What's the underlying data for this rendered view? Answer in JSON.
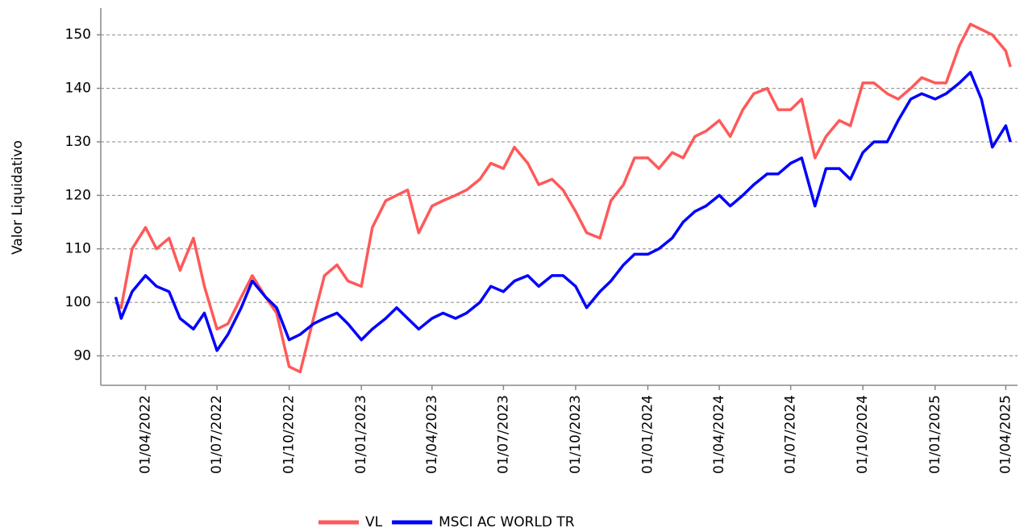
{
  "chart_data": {
    "type": "line",
    "y_label": "Valor Liquidativo",
    "x": [
      "22/02/2022",
      "01/03/2022",
      "15/03/2022",
      "01/04/2022",
      "15/04/2022",
      "01/05/2022",
      "15/05/2022",
      "01/06/2022",
      "15/06/2022",
      "01/07/2022",
      "15/07/2022",
      "01/08/2022",
      "15/08/2022",
      "01/09/2022",
      "15/09/2022",
      "01/10/2022",
      "15/10/2022",
      "01/11/2022",
      "15/11/2022",
      "01/12/2022",
      "15/12/2022",
      "01/01/2023",
      "15/01/2023",
      "01/02/2023",
      "15/02/2023",
      "01/03/2023",
      "15/03/2023",
      "01/04/2023",
      "15/04/2023",
      "01/05/2023",
      "15/05/2023",
      "01/06/2023",
      "15/06/2023",
      "01/07/2023",
      "15/07/2023",
      "01/08/2023",
      "15/08/2023",
      "01/09/2023",
      "15/09/2023",
      "01/10/2023",
      "15/10/2023",
      "01/11/2023",
      "15/11/2023",
      "01/12/2023",
      "15/12/2023",
      "01/01/2024",
      "15/01/2024",
      "01/02/2024",
      "15/02/2024",
      "01/03/2024",
      "15/03/2024",
      "01/04/2024",
      "15/04/2024",
      "01/05/2024",
      "15/05/2024",
      "01/06/2024",
      "15/06/2024",
      "01/07/2024",
      "15/07/2024",
      "01/08/2024",
      "15/08/2024",
      "01/09/2024",
      "15/09/2024",
      "01/10/2024",
      "15/10/2024",
      "01/11/2024",
      "15/11/2024",
      "01/12/2024",
      "15/12/2024",
      "01/01/2025",
      "15/01/2025",
      "01/02/2025",
      "15/02/2025",
      "01/03/2025",
      "15/03/2025",
      "01/04/2025",
      "07/04/2025"
    ],
    "series": [
      {
        "name": "VL",
        "color": "#ff5959",
        "values": [
          100,
          99,
          110,
          114,
          110,
          112,
          106,
          112,
          103,
          95,
          96,
          101,
          105,
          101,
          98,
          88,
          87,
          97,
          105,
          107,
          104,
          103,
          114,
          119,
          120,
          121,
          113,
          118,
          119,
          120,
          121,
          123,
          126,
          125,
          129,
          126,
          122,
          123,
          121,
          117,
          113,
          112,
          119,
          122,
          127,
          127,
          125,
          128,
          127,
          131,
          132,
          134,
          131,
          136,
          139,
          140,
          136,
          136,
          138,
          127,
          131,
          134,
          133,
          141,
          141,
          139,
          138,
          140,
          142,
          141,
          141,
          148,
          152,
          151,
          150,
          147,
          144
        ]
      },
      {
        "name": "MSCI AC WORLD TR",
        "color": "#0000ff",
        "values": [
          101,
          97,
          102,
          105,
          103,
          102,
          97,
          95,
          98,
          91,
          94,
          99,
          104,
          101,
          99,
          93,
          94,
          96,
          97,
          98,
          96,
          93,
          95,
          97,
          99,
          97,
          95,
          97,
          98,
          97,
          98,
          100,
          103,
          102,
          104,
          105,
          103,
          105,
          105,
          103,
          99,
          102,
          104,
          107,
          109,
          109,
          110,
          112,
          115,
          117,
          118,
          120,
          118,
          120,
          122,
          124,
          124,
          126,
          127,
          118,
          125,
          125,
          123,
          128,
          130,
          130,
          134,
          138,
          139,
          138,
          139,
          141,
          143,
          138,
          129,
          133,
          130
        ]
      }
    ],
    "xlim": [
      "03/02/2022",
      "16/04/2025"
    ],
    "xticks": [
      "01/04/2022",
      "01/07/2022",
      "01/10/2022",
      "01/01/2023",
      "01/04/2023",
      "01/07/2023",
      "01/10/2023",
      "01/01/2024",
      "01/04/2024",
      "01/07/2024",
      "01/10/2024",
      "01/01/2025",
      "01/04/2025"
    ],
    "ylim": [
      84.5,
      155
    ],
    "yticks": [
      90,
      100,
      110,
      120,
      130,
      140,
      150
    ],
    "grid": true,
    "legend": "bottom"
  }
}
